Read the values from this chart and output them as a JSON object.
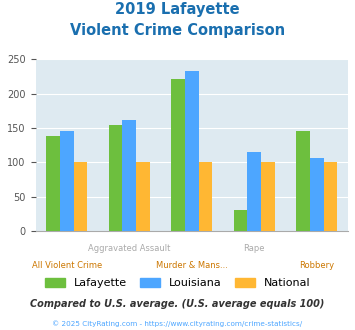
{
  "title_line1": "2019 Lafayette",
  "title_line2": "Violent Crime Comparison",
  "title_color": "#1a6faf",
  "categories": [
    "All Violent Crime",
    "Aggravated Assault",
    "Murder & Mans...",
    "Rape",
    "Robbery"
  ],
  "top_labels": [
    "",
    "Aggravated Assault",
    "",
    "Rape",
    ""
  ],
  "bot_labels": [
    "All Violent Crime",
    "",
    "Murder & Mans...",
    "",
    "Robbery"
  ],
  "top_label_color": "#aaaaaa",
  "bot_label_color": "#cc7700",
  "series": {
    "Lafayette": [
      139,
      155,
      222,
      30,
      145
    ],
    "Louisiana": [
      146,
      161,
      233,
      115,
      106
    ],
    "National": [
      100,
      100,
      100,
      100,
      100
    ]
  },
  "colors": {
    "Lafayette": "#6dbf3e",
    "Louisiana": "#4da6ff",
    "National": "#ffb733"
  },
  "ylim": [
    0,
    250
  ],
  "yticks": [
    0,
    50,
    100,
    150,
    200,
    250
  ],
  "background_color": "#deeaf1",
  "outer_bg": "#ffffff",
  "legend_labels": [
    "Lafayette",
    "Louisiana",
    "National"
  ],
  "footer_text": "Compared to U.S. average. (U.S. average equals 100)",
  "footer_color": "#333333",
  "copyright_text": "© 2025 CityRating.com - https://www.cityrating.com/crime-statistics/",
  "copyright_color": "#4da6ff",
  "grid_color": "#ffffff",
  "bar_width": 0.22
}
